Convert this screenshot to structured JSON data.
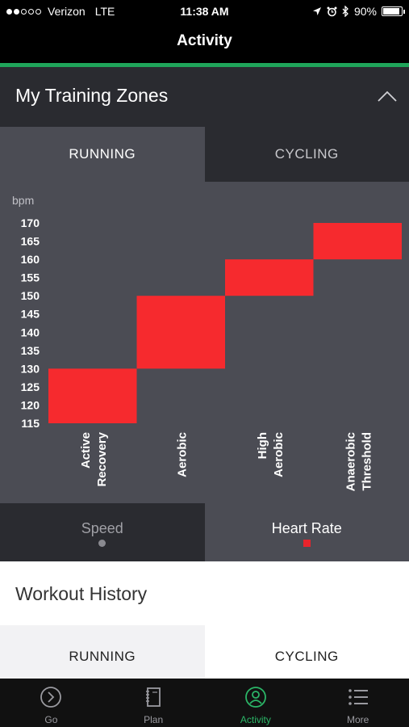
{
  "status_bar": {
    "carrier": "Verizon",
    "network": "LTE",
    "time": "11:38 AM",
    "battery": "90%",
    "battery_level": 0.9,
    "icons": [
      "location-arrow-icon",
      "alarm-icon",
      "bluetooth-icon",
      "battery-icon"
    ]
  },
  "header": {
    "title": "Activity"
  },
  "training_zones": {
    "title": "My Training Zones",
    "collapse_icon": "chevron-up-icon",
    "tabs": [
      {
        "label": "RUNNING",
        "active": true
      },
      {
        "label": "CYCLING",
        "active": false
      }
    ],
    "metric_tabs": [
      {
        "label": "Speed",
        "active": false,
        "indicator": "grey-dot"
      },
      {
        "label": "Heart Rate",
        "active": true,
        "indicator": "red-square"
      }
    ]
  },
  "chart_data": {
    "type": "bar",
    "title": "",
    "xlabel": "",
    "ylabel": "bpm",
    "y_ticks": [
      170,
      165,
      160,
      155,
      150,
      145,
      140,
      135,
      130,
      125,
      120,
      115
    ],
    "ylim": [
      115,
      170
    ],
    "categories": [
      {
        "lines": [
          "Active",
          "Recovery"
        ]
      },
      {
        "lines": [
          "Aerobic"
        ]
      },
      {
        "lines": [
          "High",
          "Aerobic"
        ]
      },
      {
        "lines": [
          "Anaerobic",
          "Threshold"
        ]
      }
    ],
    "ranges": [
      {
        "low": 115,
        "high": 130
      },
      {
        "low": 130,
        "high": 150
      },
      {
        "low": 150,
        "high": 160
      },
      {
        "low": 160,
        "high": 170
      }
    ],
    "bar_color": "#f62a2e",
    "grid": false
  },
  "workout_history": {
    "title": "Workout History",
    "tabs": [
      {
        "label": "RUNNING",
        "active": true
      },
      {
        "label": "CYCLING",
        "active": false
      }
    ]
  },
  "bottom_nav": {
    "items": [
      {
        "label": "Go",
        "icon": "go-circle-arrow-icon",
        "active": false
      },
      {
        "label": "Plan",
        "icon": "notebook-icon",
        "active": false
      },
      {
        "label": "Activity",
        "icon": "person-circle-icon",
        "active": true
      },
      {
        "label": "More",
        "icon": "list-icon",
        "active": false
      }
    ]
  },
  "colors": {
    "accent": "#1fa55a",
    "active_nav": "#2bb567",
    "zone_bar": "#f62a2e",
    "panel": "#4b4c54",
    "panel_dark": "#2a2b30"
  }
}
